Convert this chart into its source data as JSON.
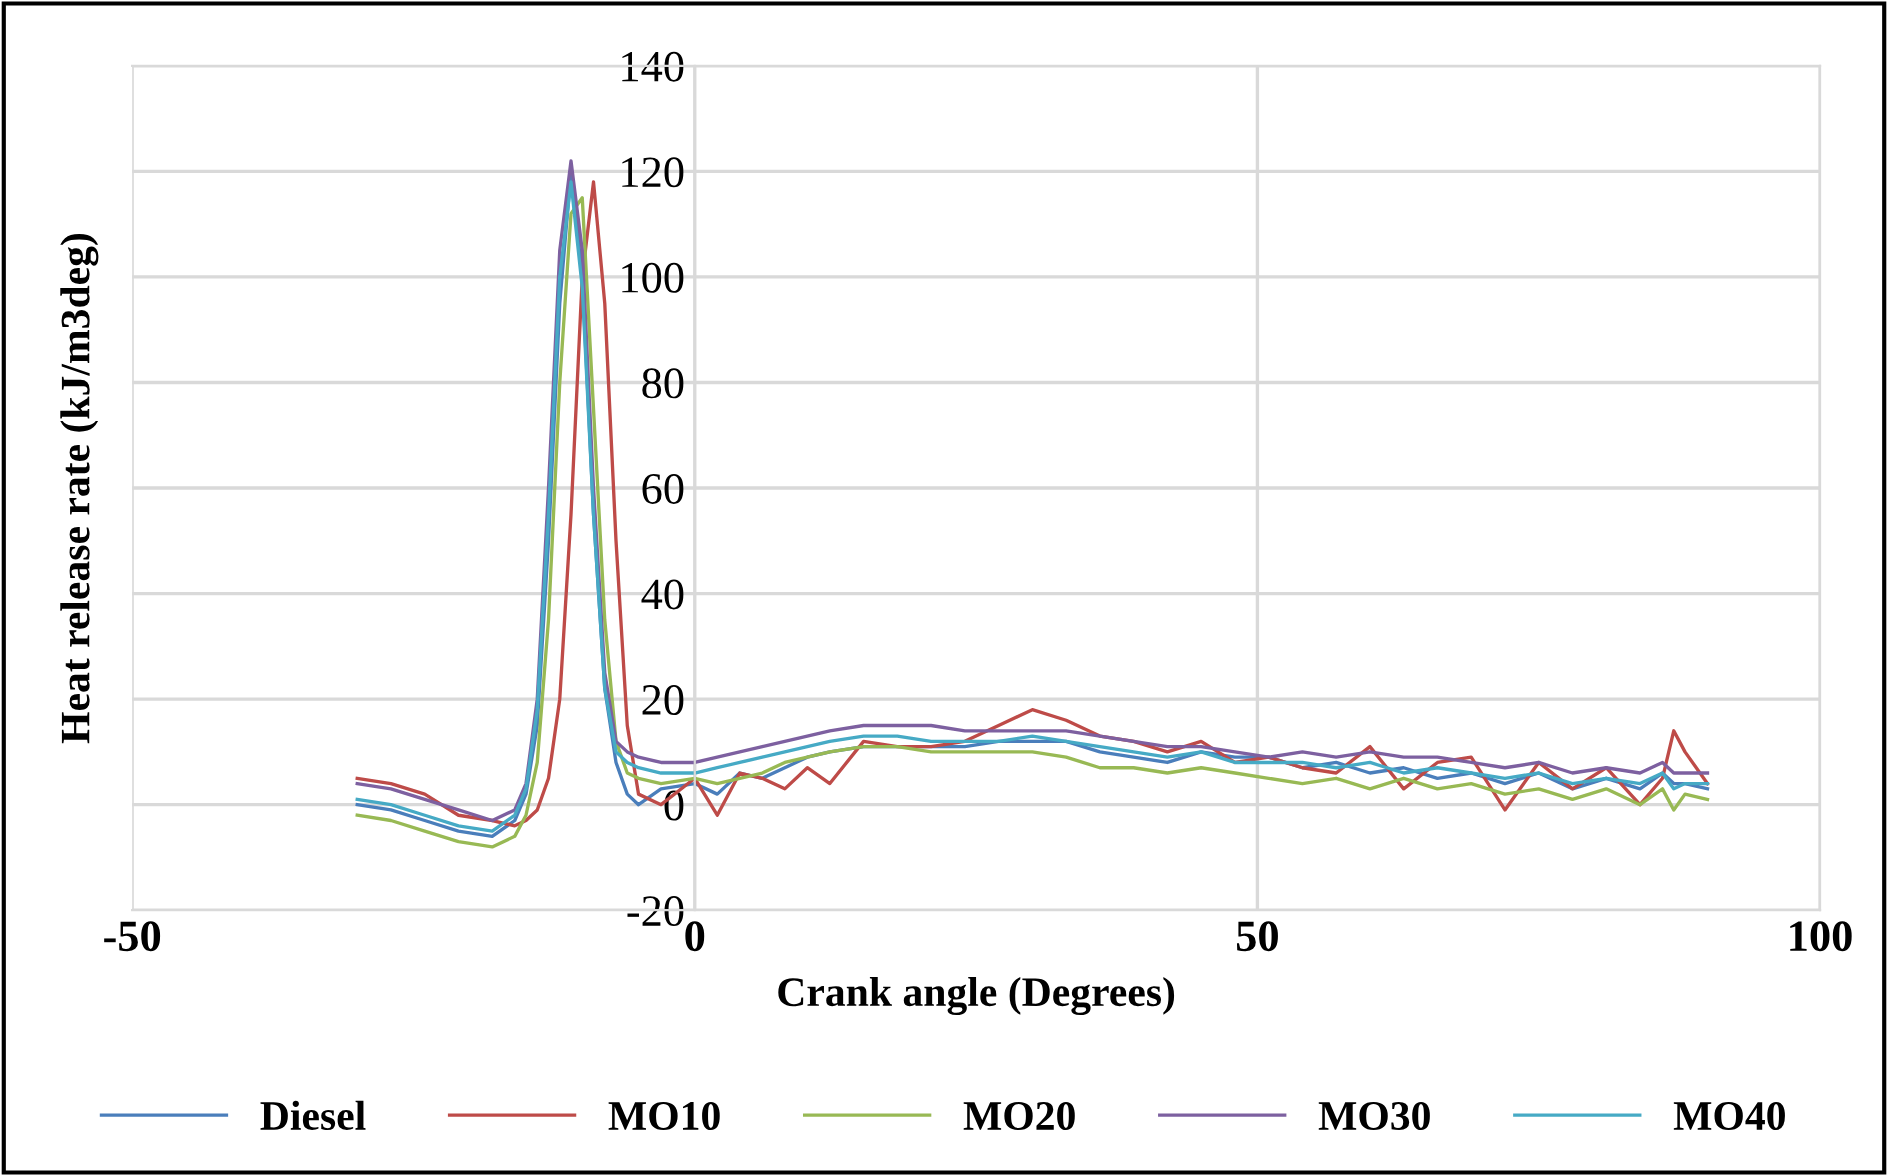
{
  "chart_data": {
    "type": "line",
    "xlabel": "Crank angle (Degrees)",
    "ylabel": "Heat release rate (kJ/m3deg)",
    "x": [
      -30,
      -27,
      -24,
      -21,
      -18,
      -16,
      -15,
      -14,
      -13,
      -12,
      -11,
      -10,
      -9,
      -8,
      -7,
      -6,
      -5,
      -3,
      0,
      2,
      4,
      6,
      8,
      10,
      12,
      15,
      18,
      21,
      24,
      27,
      30,
      33,
      36,
      39,
      42,
      45,
      48,
      51,
      54,
      57,
      60,
      63,
      66,
      69,
      72,
      75,
      78,
      81,
      84,
      86,
      87,
      88,
      90
    ],
    "series": [
      {
        "name": "Diesel",
        "color": "#4a7ebb",
        "values": [
          0,
          -1,
          -3,
          -5,
          -6,
          -3,
          2,
          15,
          50,
          95,
          120,
          100,
          55,
          22,
          8,
          2,
          0,
          3,
          4,
          2,
          6,
          5,
          7,
          9,
          10,
          11,
          11,
          11,
          11,
          12,
          12,
          12,
          10,
          9,
          8,
          10,
          9,
          9,
          7,
          8,
          6,
          7,
          5,
          6,
          4,
          6,
          3,
          5,
          3,
          6,
          4,
          4,
          3
        ]
      },
      {
        "name": "MO10",
        "color": "#be4b48",
        "values": [
          5,
          4,
          2,
          -2,
          -3,
          -4,
          -3,
          -1,
          5,
          20,
          55,
          100,
          118,
          95,
          50,
          15,
          2,
          0,
          5,
          -2,
          6,
          5,
          3,
          7,
          4,
          12,
          11,
          11,
          12,
          15,
          18,
          16,
          13,
          12,
          10,
          12,
          8,
          9,
          7,
          6,
          11,
          3,
          8,
          9,
          -1,
          8,
          3,
          7,
          0,
          5,
          14,
          10,
          4
        ]
      },
      {
        "name": "MO20",
        "color": "#98b954",
        "values": [
          -2,
          -3,
          -5,
          -7,
          -8,
          -6,
          -2,
          8,
          35,
          80,
          112,
          115,
          75,
          35,
          12,
          6,
          5,
          4,
          5,
          4,
          5,
          6,
          8,
          9,
          10,
          11,
          11,
          10,
          10,
          10,
          10,
          9,
          7,
          7,
          6,
          7,
          6,
          5,
          4,
          5,
          3,
          5,
          3,
          4,
          2,
          3,
          1,
          3,
          0,
          3,
          -1,
          2,
          1
        ]
      },
      {
        "name": "MO30",
        "color": "#7d60a0",
        "values": [
          4,
          3,
          1,
          -1,
          -3,
          -1,
          4,
          20,
          60,
          105,
          122,
          105,
          60,
          25,
          12,
          10,
          9,
          8,
          8,
          9,
          10,
          11,
          12,
          13,
          14,
          15,
          15,
          15,
          14,
          14,
          14,
          14,
          13,
          12,
          11,
          11,
          10,
          9,
          10,
          9,
          10,
          9,
          9,
          8,
          7,
          8,
          6,
          7,
          6,
          8,
          6,
          6,
          6
        ]
      },
      {
        "name": "MO40",
        "color": "#46aac5",
        "values": [
          1,
          0,
          -2,
          -4,
          -5,
          -2,
          3,
          18,
          55,
          100,
          118,
          98,
          55,
          22,
          10,
          8,
          7,
          6,
          6,
          7,
          8,
          9,
          10,
          11,
          12,
          13,
          13,
          12,
          12,
          12,
          13,
          12,
          11,
          10,
          9,
          10,
          8,
          8,
          8,
          7,
          8,
          6,
          7,
          6,
          5,
          6,
          4,
          5,
          4,
          6,
          3,
          4,
          4
        ]
      }
    ],
    "xlim": [
      -50,
      100
    ],
    "xticks": [
      -50,
      0,
      50,
      100
    ],
    "ylim": [
      -20,
      140
    ],
    "yticks": [
      -20,
      0,
      20,
      40,
      60,
      80,
      100,
      120,
      140
    ],
    "grid": true,
    "legend": "bottom",
    "marker": "none",
    "line_style": "solid"
  }
}
